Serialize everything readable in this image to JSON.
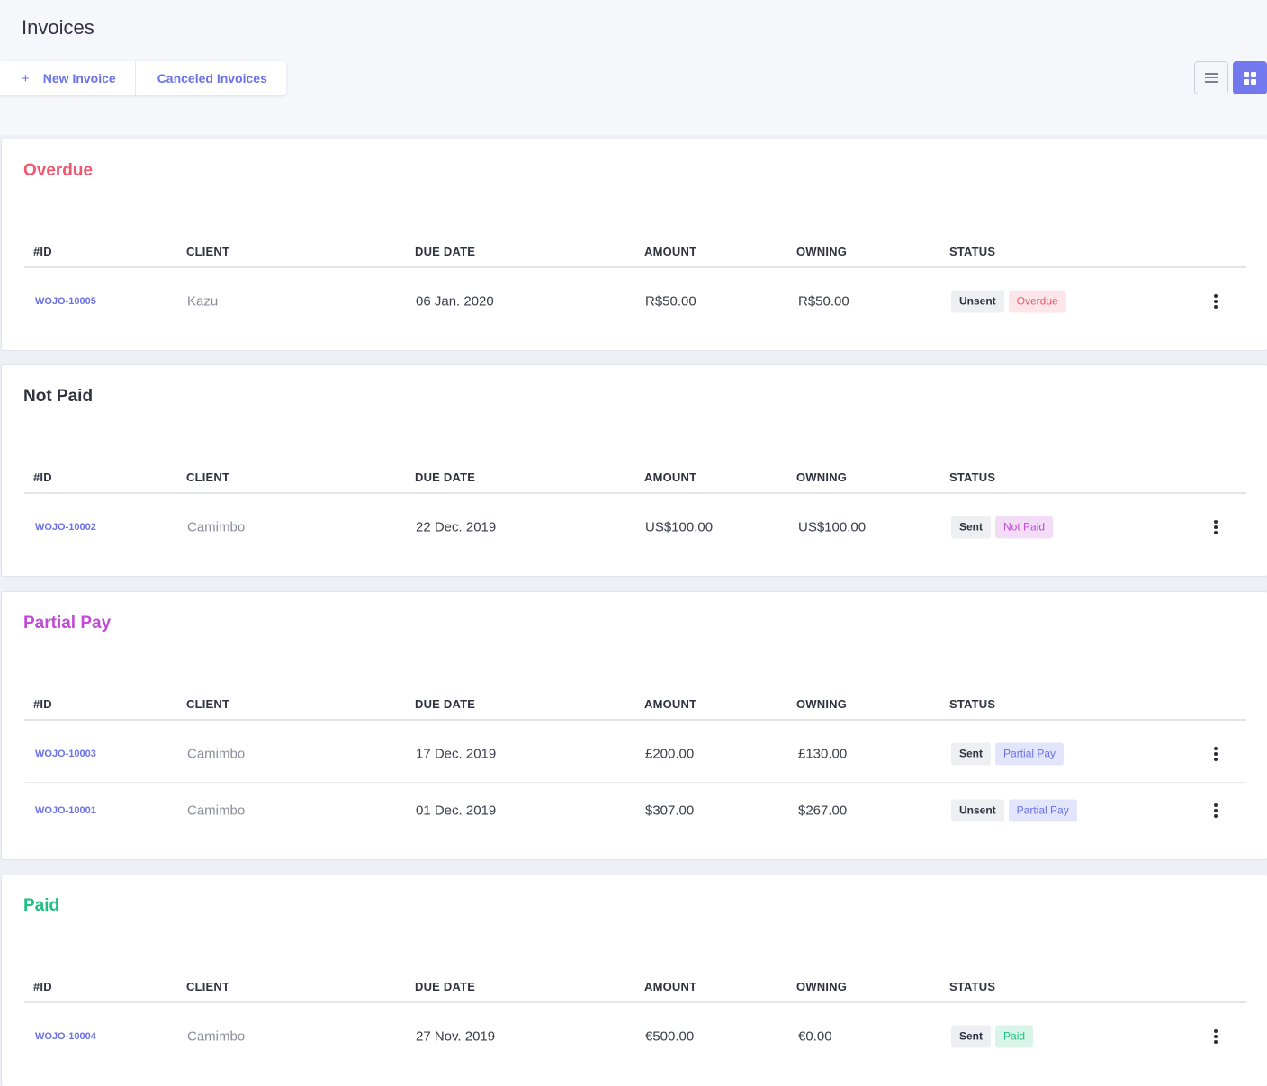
{
  "page": {
    "title": "Invoices"
  },
  "toolbar": {
    "new_invoice_icon": "+",
    "new_invoice_label": "New Invoice",
    "canceled_label": "Canceled Invoices"
  },
  "view_toggle": {
    "options": [
      "list-view-icon",
      "grid-view-icon"
    ],
    "active": "grid-view-icon"
  },
  "colors": {
    "accent": "#6a72e8",
    "overdue": "#f0566e",
    "not_paid": "#2f3340",
    "partial_pay": "#c24bd6",
    "paid": "#1fbf82"
  },
  "columns": [
    "#ID",
    "CLIENT",
    "DUE DATE",
    "AMOUNT",
    "OWNING",
    "STATUS"
  ],
  "sections": [
    {
      "title": "Overdue",
      "color": "#f0566e",
      "rows": [
        {
          "id": "WOJO-10005",
          "client": "Kazu",
          "due": "06 Jan. 2020",
          "amount": "R$50.00",
          "owning": "R$50.00",
          "status": [
            "Unsent",
            "Overdue"
          ]
        }
      ]
    },
    {
      "title": "Not Paid",
      "color": "#2f3340",
      "rows": [
        {
          "id": "WOJO-10002",
          "client": "Camimbo",
          "due": "22 Dec. 2019",
          "amount": "US$100.00",
          "owning": "US$100.00",
          "status": [
            "Sent",
            "Not Paid"
          ]
        }
      ]
    },
    {
      "title": "Partial Pay",
      "color": "#c24bd6",
      "rows": [
        {
          "id": "WOJO-10003",
          "client": "Camimbo",
          "due": "17 Dec. 2019",
          "amount": "£200.00",
          "owning": "£130.00",
          "status": [
            "Sent",
            "Partial Pay"
          ]
        },
        {
          "id": "WOJO-10001",
          "client": "Camimbo",
          "due": "01 Dec. 2019",
          "amount": "$307.00",
          "owning": "$267.00",
          "status": [
            "Unsent",
            "Partial Pay"
          ]
        }
      ]
    },
    {
      "title": "Paid",
      "color": "#1fbf82",
      "rows": [
        {
          "id": "WOJO-10004",
          "client": "Camimbo",
          "due": "27 Nov. 2019",
          "amount": "€500.00",
          "owning": "€0.00",
          "status": [
            "Sent",
            "Paid"
          ]
        }
      ]
    }
  ]
}
